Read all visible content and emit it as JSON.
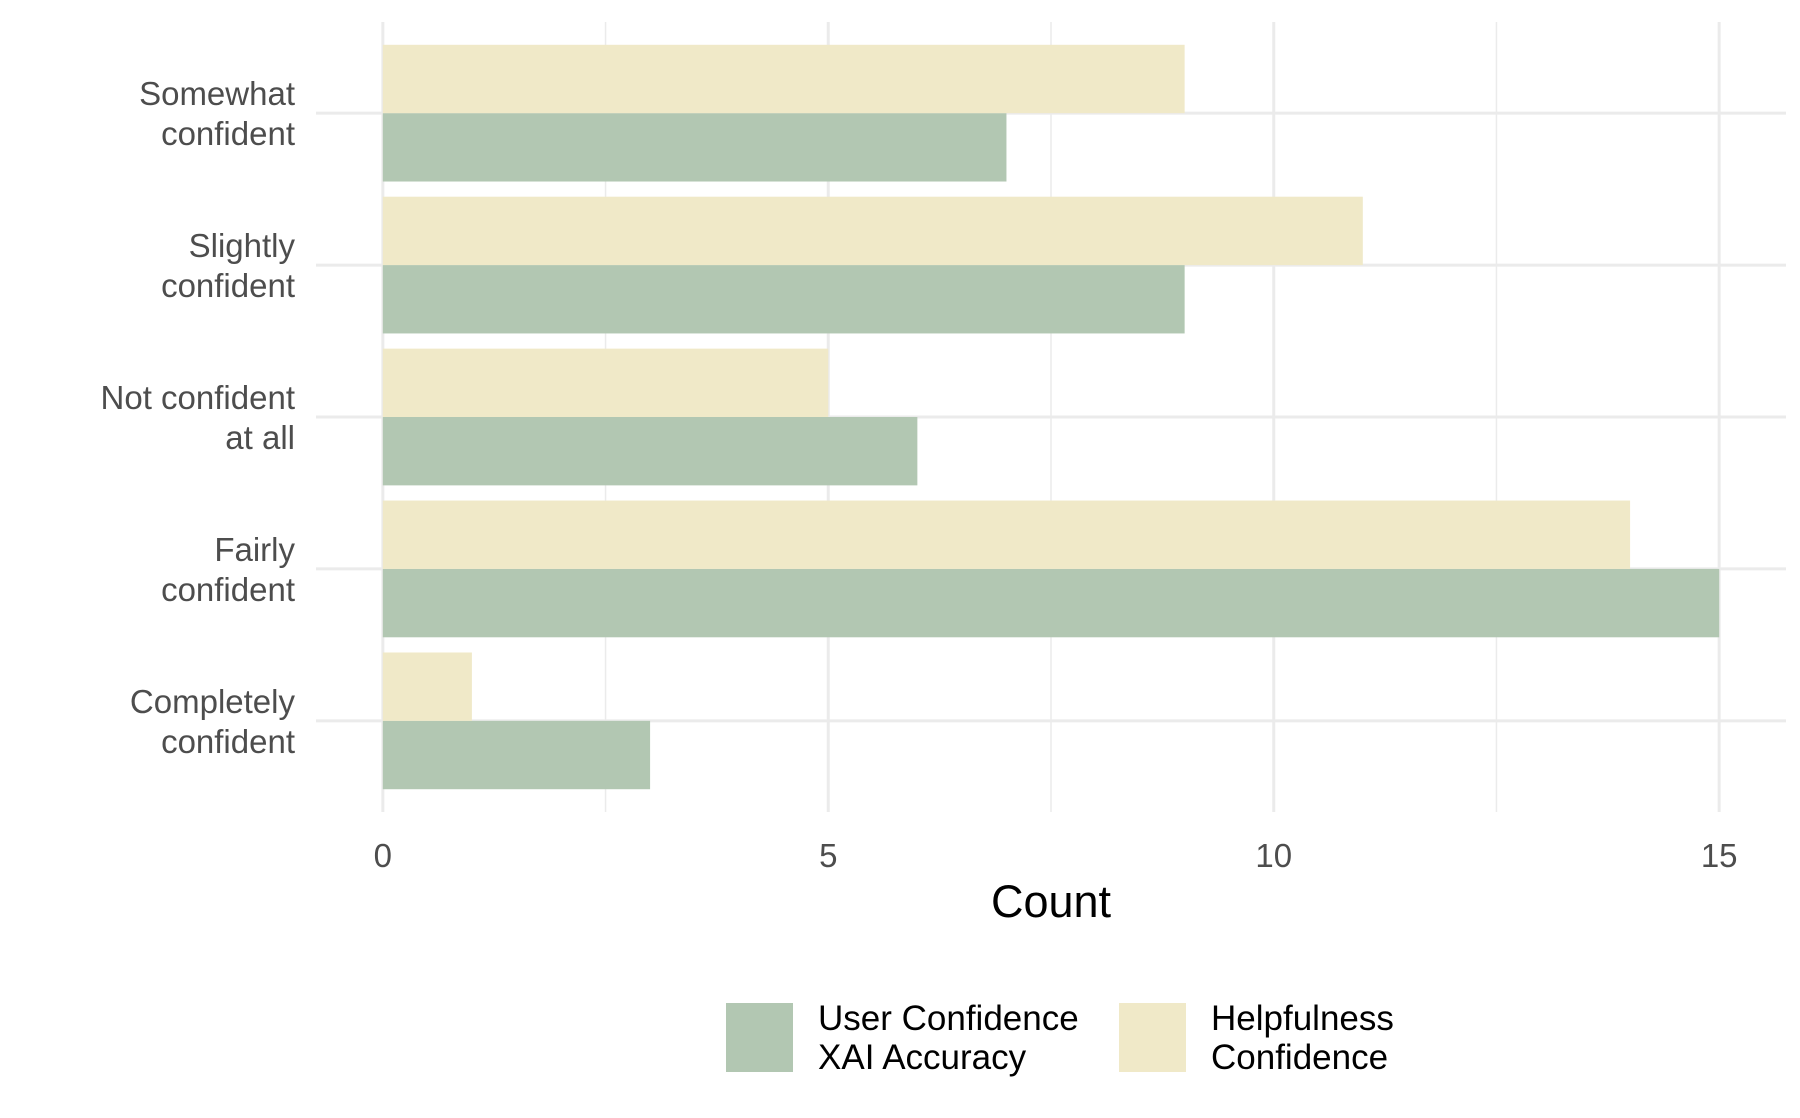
{
  "chart_data": {
    "type": "bar",
    "orientation": "horizontal",
    "categories": [
      [
        "Completely",
        "confident"
      ],
      [
        "Fairly",
        "confident"
      ],
      [
        "Not confident",
        "at all"
      ],
      [
        "Slightly",
        "confident"
      ],
      [
        "Somewhat",
        "confident"
      ]
    ],
    "series": [
      {
        "name": [
          "User Confidence",
          "XAI Accuracy"
        ],
        "color": "#b2c7b2",
        "values": [
          3,
          15,
          6,
          9,
          7
        ]
      },
      {
        "name": [
          "Helpfulness",
          "Confidence"
        ],
        "color": "#f0e9c8",
        "values": [
          1,
          14,
          5,
          11,
          9
        ]
      }
    ],
    "xlabel": "Count",
    "ylabel": "",
    "xlim": [
      -0.75,
      15.75
    ],
    "x_ticks": [
      0,
      5,
      10,
      15
    ],
    "grid": true,
    "legend_position": "bottom"
  }
}
